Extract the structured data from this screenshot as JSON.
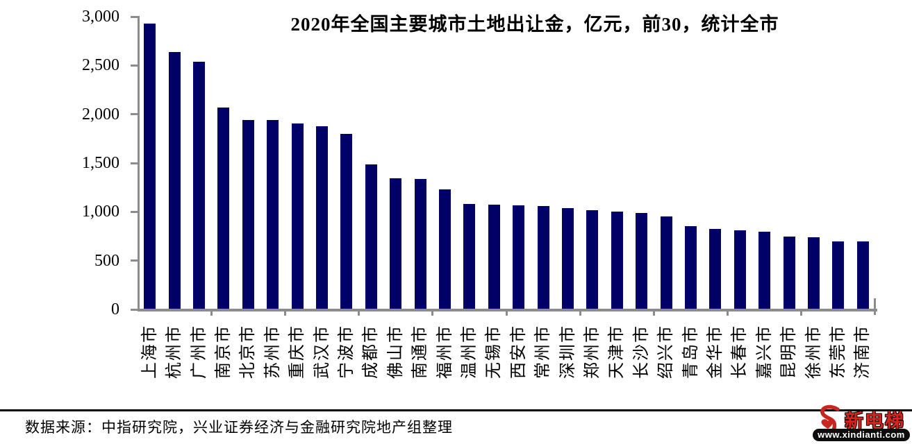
{
  "chart_data": {
    "type": "bar",
    "title": "2020年全国主要城市土地出让金，亿元，前30，统计全市",
    "categories": [
      "上海市",
      "杭州市",
      "广州市",
      "南京市",
      "北京市",
      "苏州市",
      "重庆市",
      "武汉市",
      "宁波市",
      "成都市",
      "佛山市",
      "南通市",
      "福州市",
      "温州市",
      "无锡市",
      "西安市",
      "常州市",
      "深圳市",
      "郑州市",
      "天津市",
      "长沙市",
      "绍兴市",
      "青岛市",
      "金华市",
      "长春市",
      "嘉兴市",
      "昆明市",
      "徐州市",
      "东莞市",
      "济南市"
    ],
    "values": [
      2930,
      2640,
      2540,
      2070,
      1940,
      1938,
      1905,
      1878,
      1800,
      1486,
      1342,
      1336,
      1228,
      1080,
      1071,
      1066,
      1062,
      1036,
      1014,
      999,
      989,
      953,
      854,
      825,
      812,
      797,
      748,
      740,
      698,
      696
    ],
    "unit": "亿元",
    "ylim": [
      0,
      3000
    ],
    "ytick_interval": 500,
    "ytick_labels": [
      "0",
      "500",
      "1,000",
      "1,500",
      "2,000",
      "2,500",
      "3,000"
    ],
    "xtick_group_interval": 3,
    "xlabel_rotation": -90,
    "bar_color": "#000066",
    "axis_color": "#8c8c8c",
    "grid": false,
    "legend": "none"
  },
  "footer": {
    "source_text": "数据来源：中指研究院，兴业证券经济与金融研究院地产组整理"
  },
  "watermark": {
    "icon": "xindianti-logo-icon",
    "brand": "新电梯",
    "url": "www.xindianti.com",
    "brand_color": "#d3261f"
  }
}
